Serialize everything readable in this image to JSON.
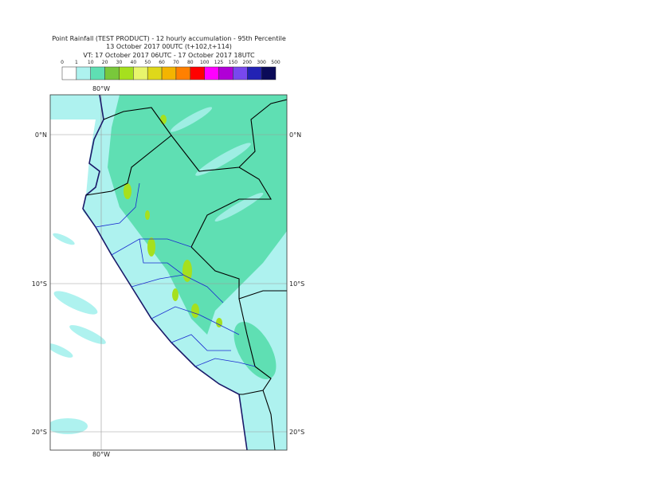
{
  "header": {
    "lines": [
      "Point Rainfall (TEST PRODUCT) - 12 hourly accumulation - 95th Percentile",
      "13 October 2017 00UTC (t+102,t+114)",
      "VT: 17 October 2017 06UTC - 17 October 2017 18UTC"
    ]
  },
  "legend": {
    "thresholds": [
      "0",
      "1",
      "10",
      "20",
      "30",
      "40",
      "50",
      "60",
      "70",
      "80",
      "100",
      "125",
      "150",
      "200",
      "300",
      "500"
    ],
    "colors": [
      "#ffffff",
      "#aef2ef",
      "#5fdfb3",
      "#79c83b",
      "#a6e01e",
      "#e8f56c",
      "#dfd81a",
      "#f4b400",
      "#ff8000",
      "#ff0000",
      "#ff00ff",
      "#b000d6",
      "#7848ee",
      "#2222b4",
      "#0a0a58"
    ]
  },
  "map": {
    "lon_labels": [
      "80°W"
    ],
    "lat_labels": [
      "0°N",
      "10°S",
      "20°S"
    ]
  }
}
